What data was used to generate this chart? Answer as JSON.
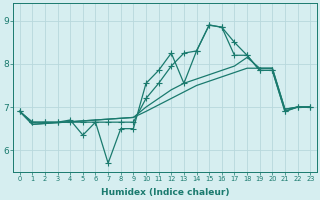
{
  "xlabel": "Humidex (Indice chaleur)",
  "background_color": "#d6eef0",
  "grid_color": "#b8d8dc",
  "line_color": "#1a7a6e",
  "xlim": [
    -0.5,
    23.5
  ],
  "ylim": [
    5.5,
    9.4
  ],
  "yticks": [
    6,
    7,
    8,
    9
  ],
  "xticks": [
    0,
    1,
    2,
    3,
    4,
    5,
    6,
    7,
    8,
    9,
    10,
    11,
    12,
    13,
    14,
    15,
    16,
    17,
    18,
    19,
    20,
    21,
    22,
    23
  ],
  "series_zigzag1": [
    6.9,
    6.65,
    6.65,
    6.65,
    6.7,
    6.35,
    6.65,
    5.7,
    6.5,
    6.5,
    7.55,
    7.85,
    8.25,
    7.55,
    8.3,
    8.9,
    8.85,
    8.5,
    8.2,
    7.85,
    7.85,
    6.9,
    7.0,
    7.0
  ],
  "series_zigzag2": [
    6.9,
    6.65,
    6.65,
    6.65,
    6.65,
    6.65,
    6.65,
    6.65,
    6.65,
    6.65,
    7.2,
    7.55,
    7.95,
    8.25,
    8.3,
    8.9,
    8.85,
    8.2,
    8.2,
    7.85,
    7.85,
    6.9,
    7.0,
    7.0
  ],
  "series_linear1": [
    6.9,
    6.6,
    6.62,
    6.64,
    6.66,
    6.68,
    6.7,
    6.72,
    6.74,
    6.76,
    6.9,
    7.05,
    7.2,
    7.35,
    7.5,
    7.6,
    7.7,
    7.8,
    7.9,
    7.9,
    7.9,
    6.95,
    7.0,
    7.0
  ],
  "series_linear2": [
    6.9,
    6.6,
    6.62,
    6.64,
    6.66,
    6.68,
    6.7,
    6.72,
    6.74,
    6.76,
    7.0,
    7.2,
    7.4,
    7.55,
    7.65,
    7.75,
    7.85,
    7.95,
    8.15,
    7.9,
    7.9,
    6.95,
    7.0,
    7.0
  ]
}
